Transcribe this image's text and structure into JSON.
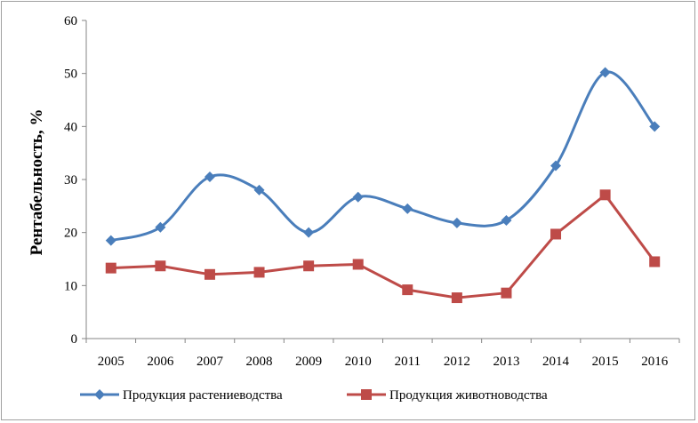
{
  "chart_data": {
    "type": "line",
    "ylabel": "Рентабельность, %",
    "ylim": [
      0,
      60
    ],
    "yticks": [
      0,
      10,
      20,
      30,
      40,
      50,
      60
    ],
    "grid": false,
    "smooth": true,
    "legend_position": "bottom",
    "categories": [
      "2005",
      "2006",
      "2007",
      "2008",
      "2009",
      "2010",
      "2011",
      "2012",
      "2013",
      "2014",
      "2015",
      "2016"
    ],
    "series": [
      {
        "name": "Продукция растениеводства",
        "color": "#4a7ebb",
        "marker": "diamond",
        "values": [
          18.5,
          21,
          30.5,
          28,
          20,
          26.7,
          24.5,
          21.8,
          22.3,
          32.6,
          50.2,
          40
        ]
      },
      {
        "name": "Продукция животноводства",
        "color": "#be4b48",
        "marker": "square",
        "values": [
          13.3,
          13.7,
          12.1,
          12.5,
          13.7,
          14,
          9.2,
          7.7,
          8.6,
          19.7,
          27.1,
          14.5
        ]
      }
    ]
  }
}
